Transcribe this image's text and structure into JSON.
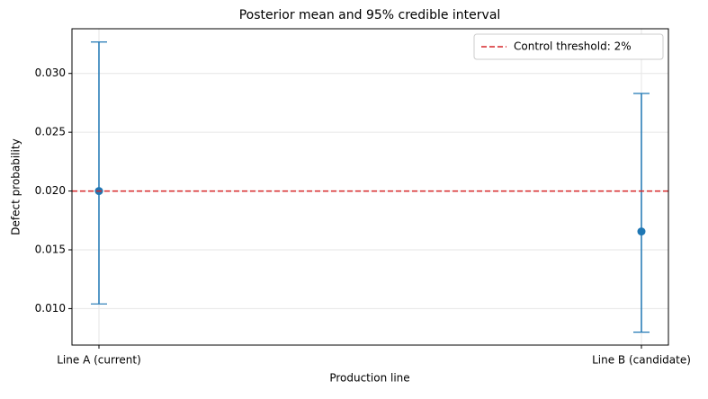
{
  "chart_data": {
    "type": "errorbar",
    "title": "Posterior mean and 95% credible interval",
    "xlabel": "Production line",
    "ylabel": "Defect probability",
    "categories": [
      "Line A (current)",
      "Line B (candidate)"
    ],
    "series": [
      {
        "color": "#1f77b4",
        "values": [
          0.02,
          0.01656
        ],
        "lower": [
          0.0104,
          0.008
        ],
        "upper": [
          0.03267,
          0.0283
        ]
      }
    ],
    "hline": {
      "name": "Control threshold: 2%",
      "value": 0.02,
      "color": "#d62728"
    },
    "ylim": [
      0.0069,
      0.0338
    ],
    "yticks": [
      {
        "value": 0.01,
        "label": "0.010"
      },
      {
        "value": 0.015,
        "label": "0.015"
      },
      {
        "value": 0.02,
        "label": "0.020"
      },
      {
        "value": 0.025,
        "label": "0.025"
      },
      {
        "value": 0.03,
        "label": "0.030"
      }
    ],
    "grid": true,
    "legend": "upper right"
  }
}
